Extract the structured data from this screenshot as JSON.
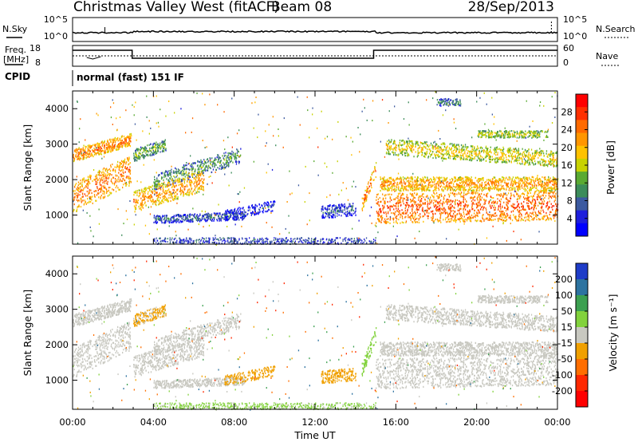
{
  "header": {
    "station": "Christmas Valley West (fitACF)",
    "beam": "Beam 08",
    "date": "28/Sep/2013"
  },
  "noise_panel": {
    "left_label": "N.Sky",
    "left_ticks": [
      "10^5",
      "10^0"
    ],
    "right_label": "N.Search",
    "right_ticks": [
      "10^5",
      "10^0"
    ]
  },
  "freq_panel": {
    "left_label_line1": "Freq.",
    "left_label_line2": "[MHz]",
    "left_ticks": [
      "18",
      "8"
    ],
    "right_label": "Nave",
    "right_ticks": [
      "60",
      "0"
    ]
  },
  "cpid_panel": {
    "label": "CPID",
    "text": "normal (fast) 151 IF"
  },
  "power_colorbar": {
    "title": "Power [dB]",
    "ticks": [
      "28",
      "24",
      "20",
      "16",
      "12",
      "8",
      "4"
    ],
    "colors": [
      "#ff0000",
      "#ff3000",
      "#ff6a00",
      "#ff9600",
      "#ffc200",
      "#c8d200",
      "#5aaa32",
      "#3c8c5a",
      "#3c5aa0",
      "#1e1edc",
      "#0000ff"
    ]
  },
  "velocity_colorbar": {
    "title": "Velocity [m s⁻¹]",
    "ticks": [
      "200",
      "100",
      "50",
      "15",
      "-15",
      "-50",
      "-100",
      "-200"
    ],
    "colors": [
      "#1e3cc8",
      "#2d73a0",
      "#3ca050",
      "#82d23c",
      "#c8c8c0",
      "#f0a000",
      "#ff6e00",
      "#ff2800",
      "#ff0000"
    ]
  },
  "chart_data": [
    {
      "type": "heatmap",
      "panel": "power",
      "ylabel": "Slant Range [km]",
      "ylim": [
        180,
        4500
      ],
      "yticks": [
        1000,
        2000,
        3000,
        4000
      ],
      "xlim": [
        0,
        24
      ],
      "colorbar_label": "Power [dB]",
      "colorbar_range": [
        0,
        30
      ]
    },
    {
      "type": "heatmap",
      "panel": "velocity",
      "ylabel": "Slant Range [km]",
      "ylim": [
        180,
        4500
      ],
      "yticks": [
        1000,
        2000,
        3000,
        4000
      ],
      "xlim": [
        0,
        24
      ],
      "xlabel": "Time UT",
      "xticks": [
        "00:00",
        "04:00",
        "08:00",
        "12:00",
        "16:00",
        "20:00",
        "00:00"
      ],
      "colorbar_label": "Velocity [m s⁻¹]",
      "colorbar_range": [
        -250,
        250
      ]
    }
  ]
}
